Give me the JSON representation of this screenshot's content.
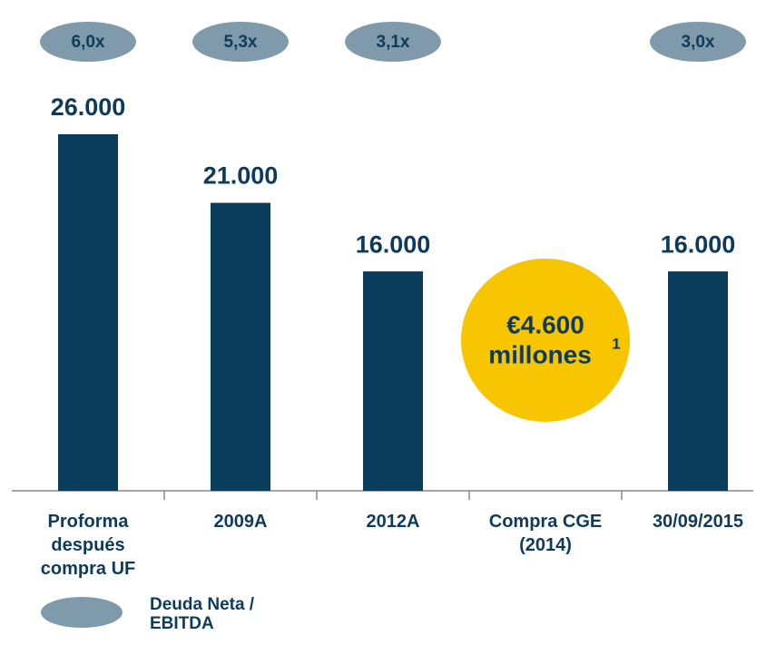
{
  "chart_data": {
    "type": "bar",
    "categories": [
      "Proforma\ndespués\ncompra UF",
      "2009A",
      "2012A",
      "Compra CGE\n(2014)",
      "30/09/2015"
    ],
    "series": [
      {
        "name": "Deuda Neta",
        "color": "#0b3d5c",
        "values": [
          26000,
          21000,
          16000,
          null,
          16000
        ],
        "value_labels": [
          "26.000",
          "21.000",
          "16.000",
          null,
          "16.000"
        ]
      },
      {
        "name": "Deuda Neta /\nEBITDA",
        "color": "#7f9aab",
        "values": [
          6.0,
          5.3,
          3.1,
          null,
          3.0
        ],
        "value_labels": [
          "6,0x",
          "5,3x",
          "3,1x",
          null,
          "3,0x"
        ]
      }
    ],
    "annotation": {
      "lines": [
        "€4.600",
        "millones"
      ],
      "footnote": "1",
      "color": "#f7c600",
      "category": 3
    }
  }
}
